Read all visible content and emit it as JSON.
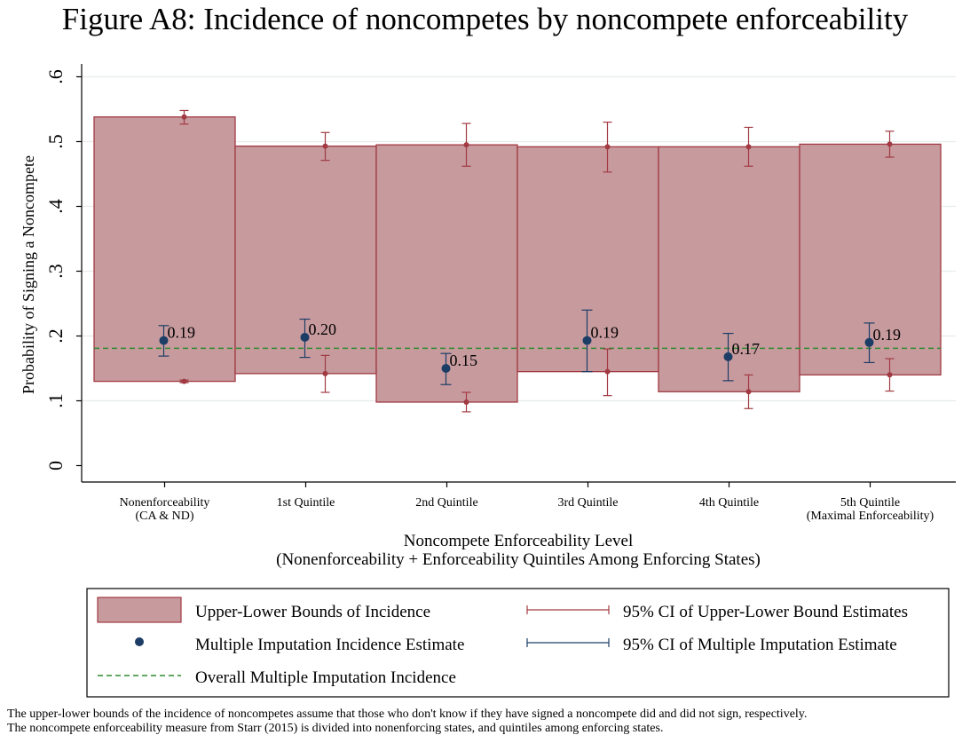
{
  "figure_title": "Figure A8: Incidence of noncompetes by noncompete enforceability",
  "notes": [
    "The upper-lower bounds of the incidence of noncompetes assume that those who don't know if they have signed a noncompete did and did not sign, respectively.",
    "The noncompete enforceability measure from Starr (2015) is divided into nonenforcing states, and quintiles among enforcing states."
  ],
  "colors": {
    "bar_fill": "#c79a9e",
    "bar_stroke": "#a13a42",
    "bound_marker": "#a13a42",
    "estimate_marker": "#1c3e66",
    "overall_line": "#2e8b2e",
    "grid": "#e6ecec"
  },
  "chart_data": {
    "type": "bar",
    "ylabel": "Probability of Signing a Noncompete",
    "xlabel": "Noncompete Enforceability Level",
    "xlabel_sub": "(Nonenforceability + Enforceability Quintiles Among Enforcing States)",
    "ylim": [
      0,
      0.6
    ],
    "yticks": [
      0,
      0.1,
      0.2,
      0.3,
      0.4,
      0.5,
      0.6
    ],
    "ytick_labels": [
      "0",
      ".1",
      ".2",
      ".3",
      ".4",
      ".5",
      ".6"
    ],
    "grid": true,
    "categories": [
      {
        "label": "Nonenforceability",
        "sublabel": "(CA & ND)"
      },
      {
        "label": "1st Quintile",
        "sublabel": ""
      },
      {
        "label": "2nd Quintile",
        "sublabel": ""
      },
      {
        "label": "3rd Quintile",
        "sublabel": ""
      },
      {
        "label": "4th Quintile",
        "sublabel": ""
      },
      {
        "label": "5th Quintile",
        "sublabel": "(Maximal Enforceability)"
      }
    ],
    "bounds": [
      {
        "lower": 0.13,
        "upper": 0.538,
        "lower_ci": [
          0.128,
          0.132
        ],
        "upper_ci": [
          0.527,
          0.548
        ]
      },
      {
        "lower": 0.142,
        "upper": 0.493,
        "lower_ci": [
          0.113,
          0.17
        ],
        "upper_ci": [
          0.471,
          0.514
        ]
      },
      {
        "lower": 0.098,
        "upper": 0.495,
        "lower_ci": [
          0.083,
          0.113
        ],
        "upper_ci": [
          0.462,
          0.528
        ]
      },
      {
        "lower": 0.145,
        "upper": 0.492,
        "lower_ci": [
          0.108,
          0.18
        ],
        "upper_ci": [
          0.453,
          0.53
        ]
      },
      {
        "lower": 0.114,
        "upper": 0.492,
        "lower_ci": [
          0.088,
          0.14
        ],
        "upper_ci": [
          0.462,
          0.522
        ]
      },
      {
        "lower": 0.14,
        "upper": 0.496,
        "lower_ci": [
          0.115,
          0.165
        ],
        "upper_ci": [
          0.476,
          0.516
        ]
      }
    ],
    "estimates": [
      {
        "value": 0.193,
        "ci": [
          0.169,
          0.216
        ],
        "label": "0.19"
      },
      {
        "value": 0.198,
        "ci": [
          0.167,
          0.226
        ],
        "label": "0.20"
      },
      {
        "value": 0.15,
        "ci": [
          0.125,
          0.173
        ],
        "label": "0.15"
      },
      {
        "value": 0.193,
        "ci": [
          0.145,
          0.24
        ],
        "label": "0.19"
      },
      {
        "value": 0.168,
        "ci": [
          0.131,
          0.204
        ],
        "label": "0.17"
      },
      {
        "value": 0.19,
        "ci": [
          0.159,
          0.22
        ],
        "label": "0.19"
      }
    ],
    "overall_estimate": 0.181,
    "legend": {
      "placement": "bottom",
      "items": [
        {
          "key": "bounds",
          "label": "Upper-Lower Bounds of Incidence"
        },
        {
          "key": "bound_ci",
          "label": "95% CI of Upper-Lower Bound Estimates"
        },
        {
          "key": "estimate",
          "label": "Multiple Imputation Incidence Estimate"
        },
        {
          "key": "estimate_ci",
          "label": "95% CI of Multiple Imputation Estimate"
        },
        {
          "key": "overall",
          "label": "Overall Multiple Imputation Incidence"
        }
      ]
    }
  }
}
